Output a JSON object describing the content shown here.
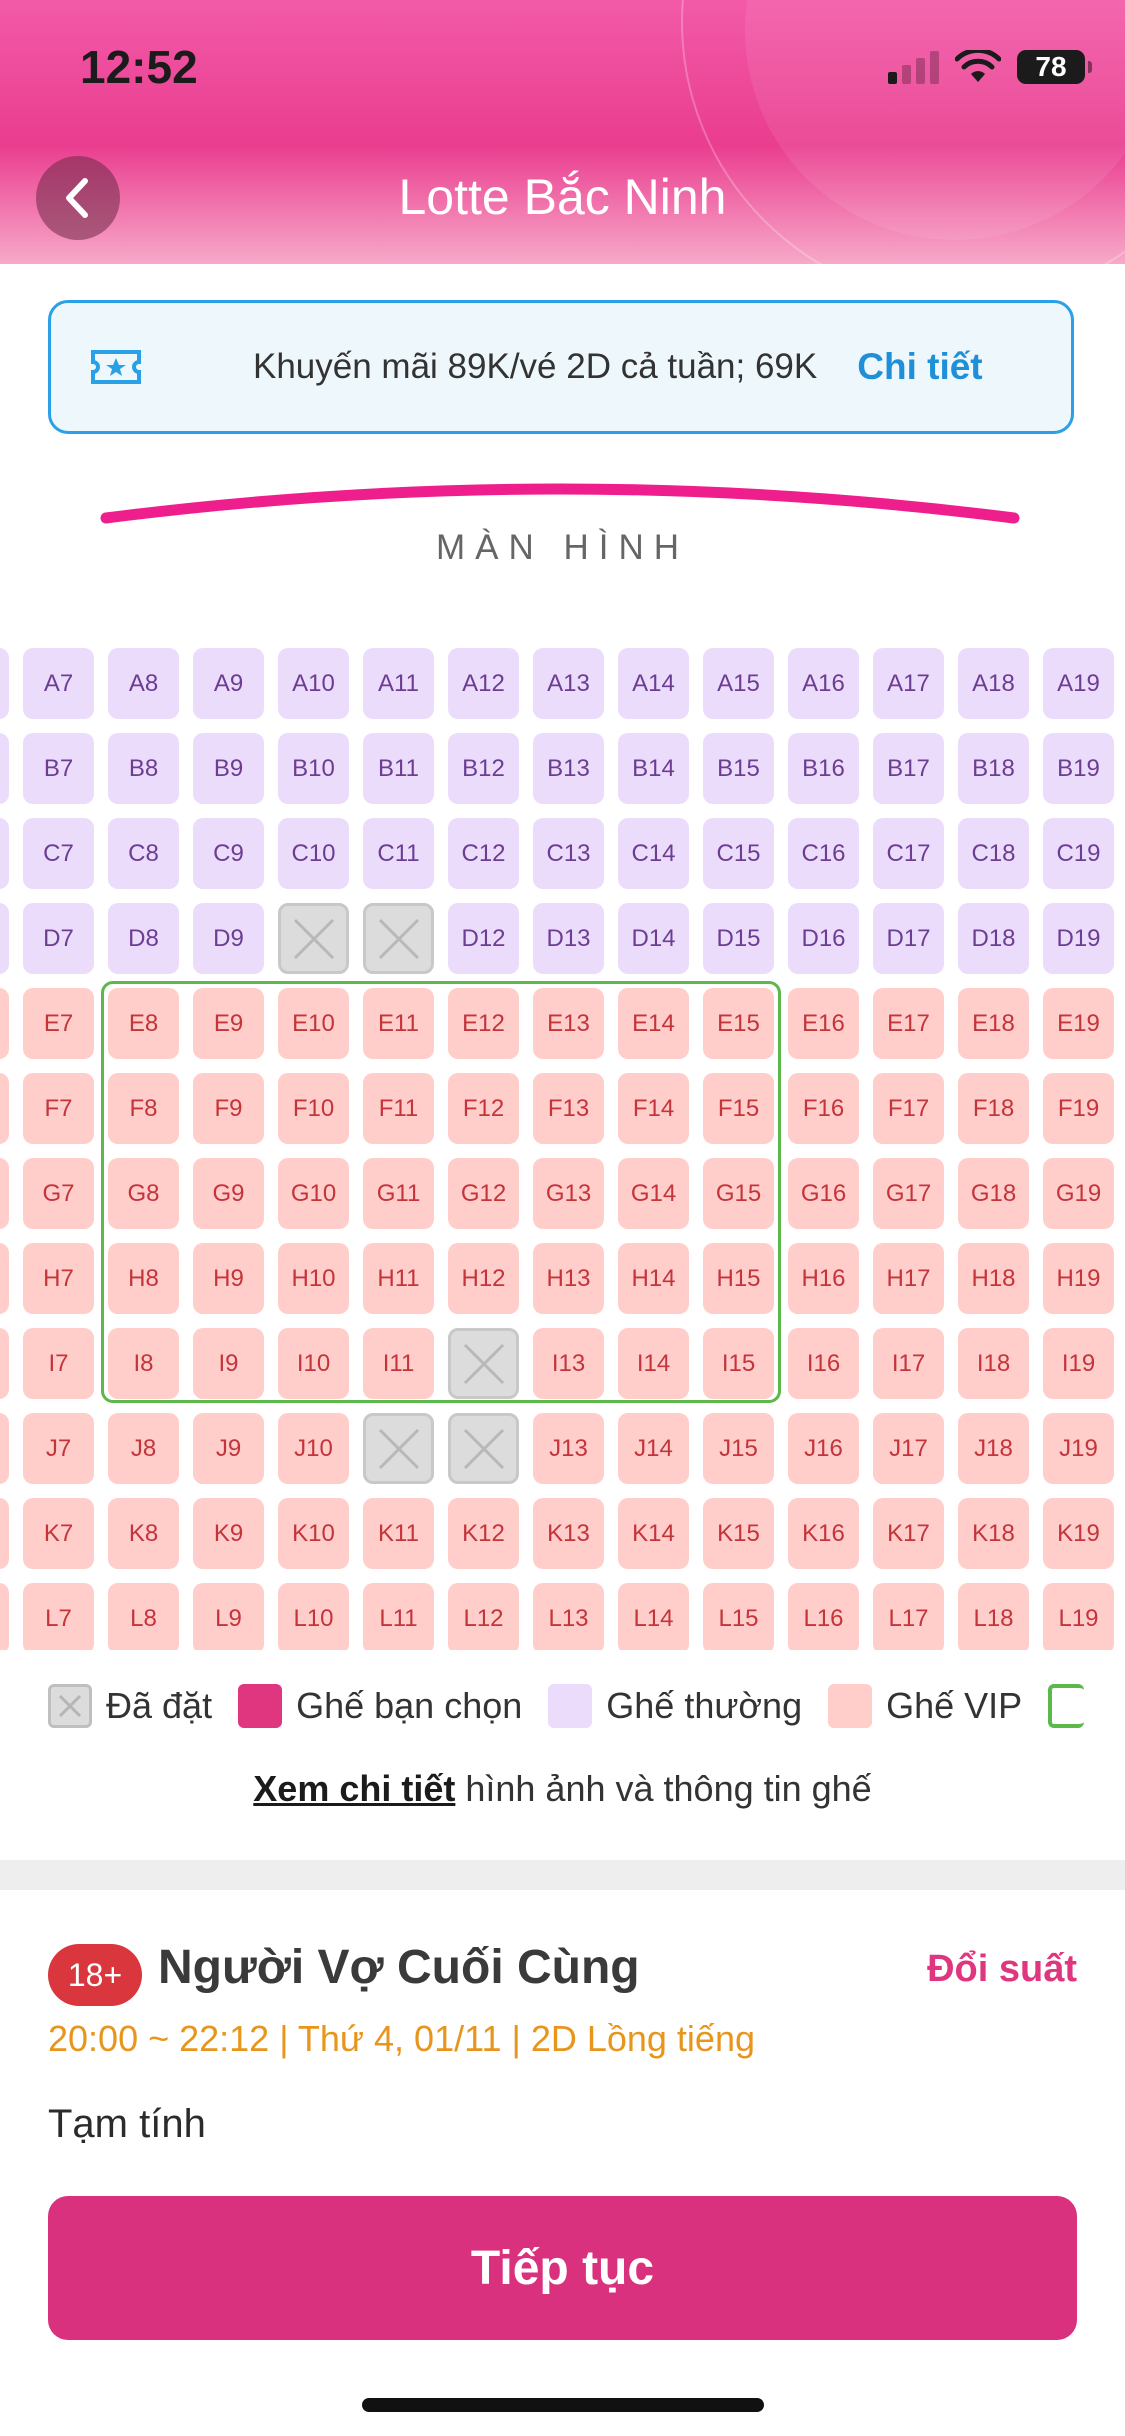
{
  "status": {
    "time": "12:52",
    "battery": "78"
  },
  "header": {
    "title": "Lotte Bắc Ninh"
  },
  "promo": {
    "text": "Khuyến mãi 89K/vé 2D cả tuần; 69K",
    "link": "Chi tiết"
  },
  "screen_label": "MÀN HÌNH",
  "seat_map": {
    "rows": [
      "A",
      "B",
      "C",
      "D",
      "E",
      "F",
      "G",
      "H",
      "I",
      "J",
      "K",
      "L"
    ],
    "columns": [
      7,
      8,
      9,
      10,
      11,
      12,
      13,
      14,
      15,
      16,
      17,
      18,
      19
    ],
    "standard_rows": [
      "A",
      "B",
      "C",
      "D"
    ],
    "vip_rows": [
      "E",
      "F",
      "G",
      "H",
      "I",
      "J",
      "K",
      "L"
    ],
    "booked": [
      "D10",
      "D11",
      "I12",
      "J11",
      "J12"
    ],
    "highlight_box": {
      "rows": [
        "E",
        "I"
      ],
      "columns": [
        8,
        15
      ]
    }
  },
  "legend": {
    "booked": "Đã đặt",
    "selected": "Ghế bạn chọn",
    "standard": "Ghế thường",
    "vip": "Ghế VIP",
    "detail_link": "Xem chi tiết",
    "detail_text": " hình ảnh và thông tin ghế"
  },
  "movie": {
    "age_rating": "18+",
    "title": "Người Vợ Cuối Cùng",
    "change_link": "Đổi suất",
    "showtime": "20:00 ~ 22:12 | Thứ 4, 01/11 | 2D Lồng tiếng",
    "subtotal_label": "Tạm tính"
  },
  "actions": {
    "continue": "Tiếp tục"
  },
  "colors": {
    "brand": "#d9317e",
    "accent_blue": "#1f8fd8",
    "standard_seat": "#ecdcfb",
    "vip_seat": "#ffcdca",
    "highlight": "#5cb84a",
    "showtime": "#e8951c"
  }
}
